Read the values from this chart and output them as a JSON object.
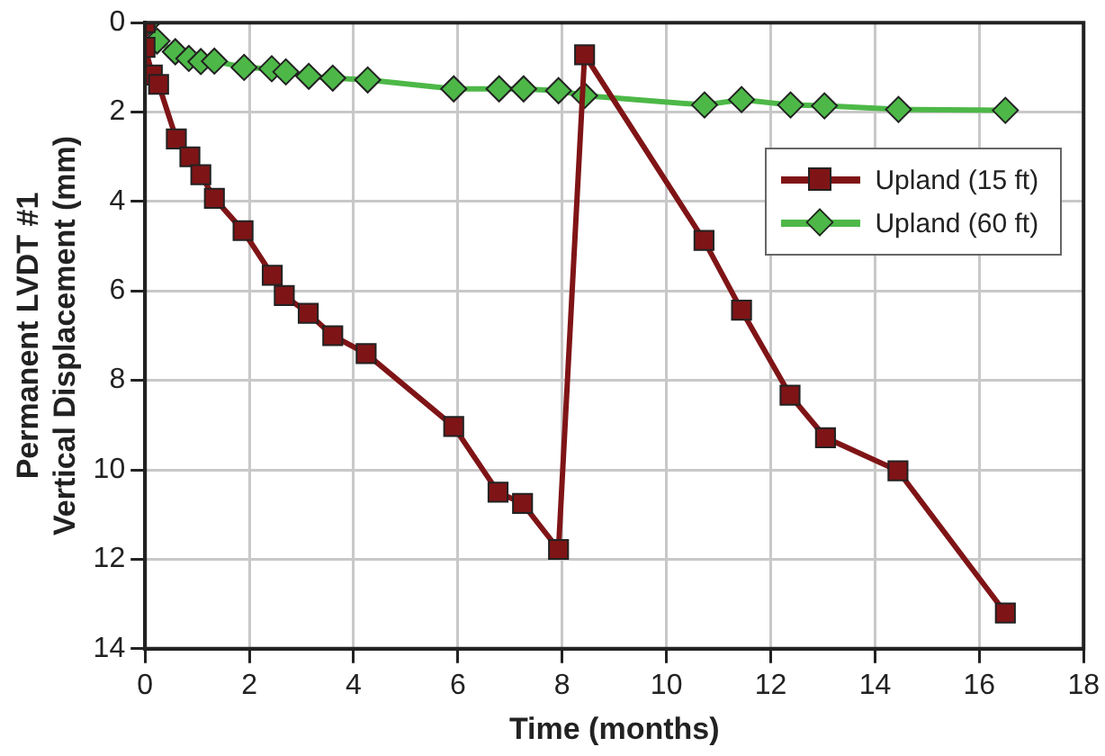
{
  "chart_data": {
    "type": "line",
    "xlabel": "Time (months)",
    "ylabel": "Permanent LVDT #1\nVertical Displacement (mm)",
    "xlim": [
      0,
      18
    ],
    "xticks": [
      0,
      2,
      4,
      6,
      8,
      10,
      12,
      14,
      16,
      18
    ],
    "ylim": [
      14,
      0
    ],
    "yticks": [
      0,
      2,
      4,
      6,
      8,
      10,
      12,
      14
    ],
    "grid": true,
    "legend": "top right",
    "line_style": "solid",
    "series": [
      {
        "name": "Upland (15 ft)",
        "color": "#7f1416",
        "marker": "square",
        "x": [
          0,
          0,
          0.14,
          0.26,
          0.6,
          0.86,
          1.07,
          1.33,
          1.88,
          2.44,
          2.67,
          3.13,
          3.6,
          4.24,
          5.92,
          6.77,
          7.24,
          7.93,
          8.43,
          10.72,
          11.44,
          12.37,
          13.05,
          14.44,
          16.5
        ],
        "values": [
          0,
          0.55,
          1.17,
          1.38,
          2.6,
          3.0,
          3.4,
          3.93,
          4.65,
          5.65,
          6.1,
          6.5,
          7.0,
          7.4,
          9.03,
          10.5,
          10.75,
          11.78,
          0.72,
          4.87,
          6.43,
          8.33,
          9.28,
          10.02,
          13.2
        ]
      },
      {
        "name": "Upland (60 ft)",
        "color": "#4db848",
        "marker": "diamond",
        "x": [
          0.05,
          0.23,
          0.58,
          0.84,
          1.07,
          1.33,
          1.9,
          2.43,
          2.7,
          3.14,
          3.6,
          4.27,
          5.92,
          6.79,
          7.26,
          7.93,
          8.43,
          10.73,
          11.44,
          12.38,
          13.03,
          14.45,
          16.5
        ],
        "values": [
          0,
          0.41,
          0.65,
          0.8,
          0.87,
          0.86,
          1.0,
          1.03,
          1.1,
          1.2,
          1.24,
          1.28,
          1.48,
          1.48,
          1.48,
          1.52,
          1.63,
          1.84,
          1.72,
          1.84,
          1.86,
          1.94,
          1.96
        ]
      }
    ]
  }
}
